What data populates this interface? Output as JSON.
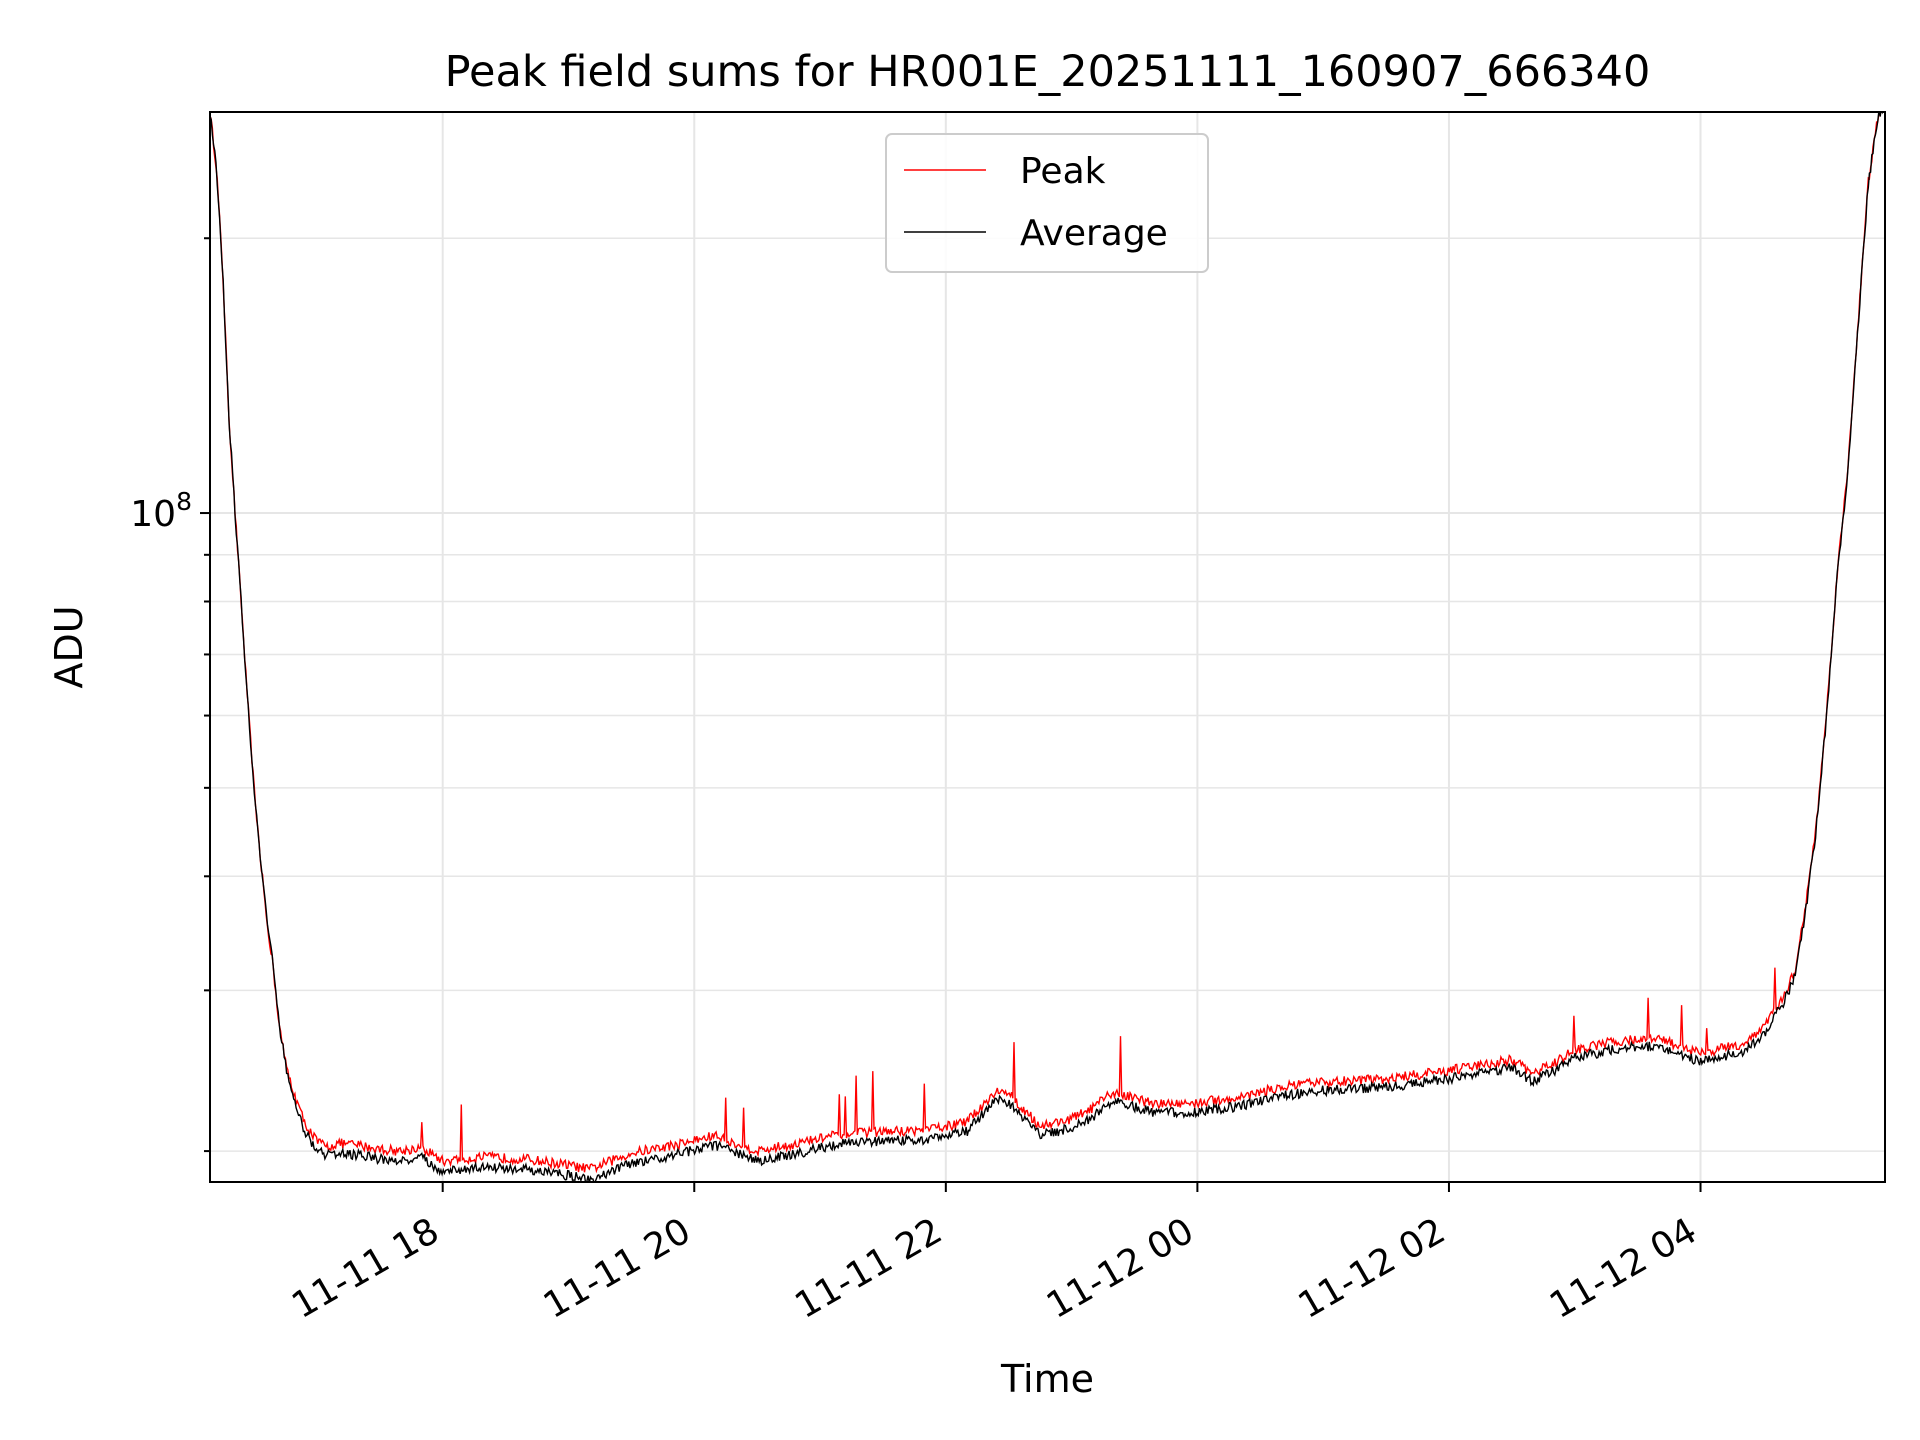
{
  "chart_data": {
    "type": "line",
    "title": "Peak field sums for HR001E_20251111_160907_666340",
    "xlabel": "Time",
    "ylabel": "ADU",
    "yscale": "log",
    "grid": true,
    "legend_position": "top-center",
    "xlim": [
      "2025-11-11 16:09",
      "2025-11-12 05:28"
    ],
    "ylim": [
      18500000,
      275000000
    ],
    "x_ticks": [
      "11-11 18",
      "11-11 20",
      "11-11 22",
      "11-12 00",
      "11-12 02",
      "11-12 04"
    ],
    "x_tick_times": [
      "2025-11-11 18:00",
      "2025-11-11 20:00",
      "2025-11-11 22:00",
      "2025-11-12 00:00",
      "2025-11-12 02:00",
      "2025-11-12 04:00"
    ],
    "y_tick_label": {
      "base": "10",
      "exponent": "8"
    },
    "y_tick_value": 100000000,
    "series": [
      {
        "name": "Peak",
        "color": "#ff0000",
        "x": [
          "2025-11-11 16:09",
          "2025-11-11 16:12",
          "2025-11-11 16:15",
          "2025-11-11 16:18",
          "2025-11-11 16:21",
          "2025-11-11 16:24",
          "2025-11-11 16:27",
          "2025-11-11 16:30",
          "2025-11-11 16:33",
          "2025-11-11 16:36",
          "2025-11-11 16:39",
          "2025-11-11 16:42",
          "2025-11-11 16:45",
          "2025-11-11 16:48",
          "2025-11-11 16:51",
          "2025-11-11 16:54",
          "2025-11-11 16:57",
          "2025-11-11 17:00",
          "2025-11-11 17:05",
          "2025-11-11 17:10",
          "2025-11-11 17:20",
          "2025-11-11 17:30",
          "2025-11-11 17:40",
          "2025-11-11 17:50",
          "2025-11-11 18:00",
          "2025-11-11 18:20",
          "2025-11-11 18:40",
          "2025-11-11 19:00",
          "2025-11-11 19:10",
          "2025-11-11 19:30",
          "2025-11-11 19:50",
          "2025-11-11 20:10",
          "2025-11-11 20:30",
          "2025-11-11 20:50",
          "2025-11-11 21:10",
          "2025-11-11 21:30",
          "2025-11-11 21:50",
          "2025-11-11 22:10",
          "2025-11-11 22:20",
          "2025-11-11 22:25",
          "2025-11-11 22:30",
          "2025-11-11 22:45",
          "2025-11-11 23:00",
          "2025-11-11 23:10",
          "2025-11-11 23:20",
          "2025-11-11 23:40",
          "2025-11-12 00:00",
          "2025-11-12 00:20",
          "2025-11-12 00:40",
          "2025-11-12 01:00",
          "2025-11-12 01:30",
          "2025-11-12 02:00",
          "2025-11-12 02:30",
          "2025-11-12 02:40",
          "2025-11-12 02:50",
          "2025-11-12 03:00",
          "2025-11-12 03:20",
          "2025-11-12 03:40",
          "2025-11-12 03:50",
          "2025-11-12 04:00",
          "2025-11-12 04:20",
          "2025-11-12 04:30",
          "2025-11-12 04:40",
          "2025-11-12 04:45",
          "2025-11-12 04:50",
          "2025-11-12 04:55",
          "2025-11-12 05:00",
          "2025-11-12 05:05",
          "2025-11-12 05:10",
          "2025-11-12 05:15",
          "2025-11-12 05:20",
          "2025-11-12 05:25",
          "2025-11-12 05:28"
        ],
        "y": [
          275000000,
          240000000,
          185000000,
          128000000,
          100000000,
          79000000,
          62000000,
          50000000,
          42000000,
          36000000,
          32000000,
          27500000,
          25000000,
          23500000,
          22500000,
          21500000,
          21000000,
          20500000,
          20200000,
          20400000,
          20300000,
          20100000,
          20000000,
          20200000,
          19500000,
          19700000,
          19600000,
          19300000,
          19100000,
          19900000,
          20300000,
          20800000,
          20000000,
          20400000,
          20900000,
          21000000,
          21100000,
          21500000,
          22800000,
          23300000,
          23100000,
          21300000,
          21700000,
          22300000,
          23200000,
          22500000,
          22600000,
          22900000,
          23500000,
          23800000,
          24000000,
          24500000,
          25200000,
          24300000,
          25000000,
          25800000,
          26400000,
          26600000,
          26000000,
          25600000,
          26200000,
          27300000,
          29700000,
          31500000,
          37000000,
          45000000,
          60000000,
          85000000,
          110000000,
          160000000,
          230000000,
          275000000,
          275000000
        ]
      },
      {
        "name": "Average",
        "color": "#000000",
        "x": [
          "2025-11-11 16:09",
          "2025-11-11 16:12",
          "2025-11-11 16:15",
          "2025-11-11 16:18",
          "2025-11-11 16:21",
          "2025-11-11 16:24",
          "2025-11-11 16:27",
          "2025-11-11 16:30",
          "2025-11-11 16:33",
          "2025-11-11 16:36",
          "2025-11-11 16:39",
          "2025-11-11 16:42",
          "2025-11-11 16:45",
          "2025-11-11 16:48",
          "2025-11-11 16:51",
          "2025-11-11 16:54",
          "2025-11-11 16:57",
          "2025-11-11 17:00",
          "2025-11-11 17:05",
          "2025-11-11 17:10",
          "2025-11-11 17:20",
          "2025-11-11 17:30",
          "2025-11-11 17:40",
          "2025-11-11 17:50",
          "2025-11-11 18:00",
          "2025-11-11 18:20",
          "2025-11-11 18:40",
          "2025-11-11 19:00",
          "2025-11-11 19:10",
          "2025-11-11 19:30",
          "2025-11-11 19:50",
          "2025-11-11 20:10",
          "2025-11-11 20:30",
          "2025-11-11 20:50",
          "2025-11-11 21:10",
          "2025-11-11 21:30",
          "2025-11-11 21:50",
          "2025-11-11 22:10",
          "2025-11-11 22:20",
          "2025-11-11 22:25",
          "2025-11-11 22:30",
          "2025-11-11 22:45",
          "2025-11-11 23:00",
          "2025-11-11 23:10",
          "2025-11-11 23:20",
          "2025-11-11 23:40",
          "2025-11-12 00:00",
          "2025-11-12 00:20",
          "2025-11-12 00:40",
          "2025-11-12 01:00",
          "2025-11-12 01:30",
          "2025-11-12 02:00",
          "2025-11-12 02:30",
          "2025-11-12 02:40",
          "2025-11-12 02:50",
          "2025-11-12 03:00",
          "2025-11-12 03:20",
          "2025-11-12 03:40",
          "2025-11-12 03:50",
          "2025-11-12 04:00",
          "2025-11-12 04:20",
          "2025-11-12 04:30",
          "2025-11-12 04:40",
          "2025-11-12 04:45",
          "2025-11-12 04:50",
          "2025-11-12 04:55",
          "2025-11-12 05:00",
          "2025-11-12 05:05",
          "2025-11-12 05:10",
          "2025-11-12 05:15",
          "2025-11-12 05:20",
          "2025-11-12 05:25",
          "2025-11-12 05:28"
        ],
        "y": [
          275000000,
          240000000,
          185000000,
          128000000,
          100000000,
          79000000,
          62000000,
          50000000,
          42000000,
          36000000,
          32000000,
          27500000,
          25000000,
          23000000,
          22000000,
          21000000,
          20500000,
          20000000,
          19800000,
          19900000,
          19800000,
          19600000,
          19500000,
          19700000,
          19000000,
          19200000,
          19100000,
          18800000,
          18600000,
          19400000,
          19800000,
          20300000,
          19500000,
          19900000,
          20400000,
          20500000,
          20600000,
          21000000,
          22300000,
          22800000,
          22600000,
          20800000,
          21200000,
          21800000,
          22700000,
          22000000,
          22100000,
          22400000,
          23000000,
          23300000,
          23500000,
          24000000,
          24700000,
          23800000,
          24500000,
          25300000,
          25900000,
          26100000,
          25500000,
          25100000,
          25700000,
          26800000,
          29200000,
          31000000,
          36500000,
          44500000,
          59500000,
          84500000,
          109000000,
          159000000,
          229000000,
          275000000,
          275000000
        ]
      }
    ]
  }
}
